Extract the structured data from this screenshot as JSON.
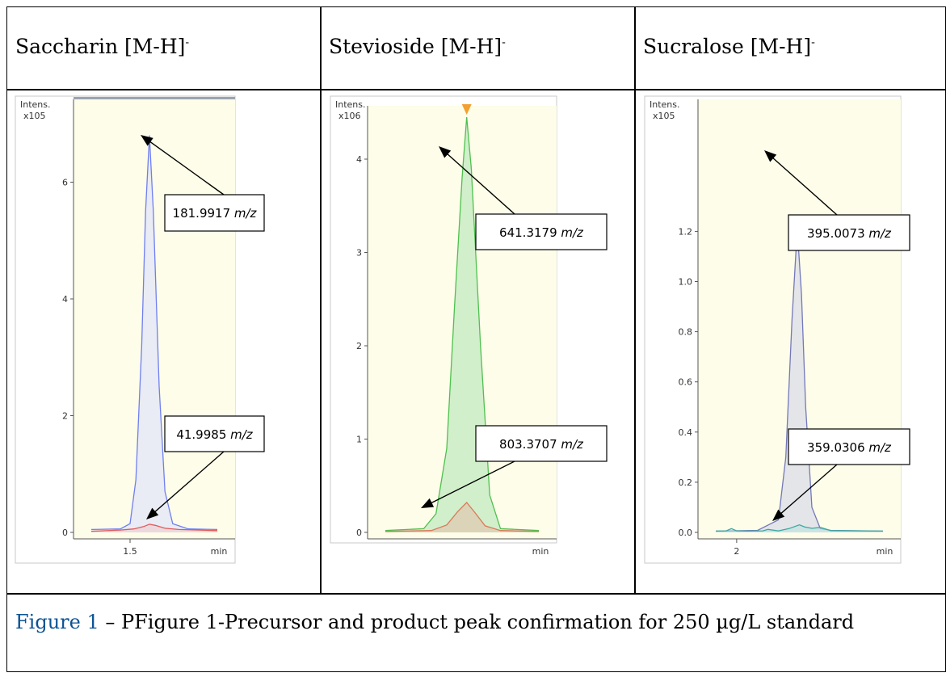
{
  "headers": [
    {
      "name": "Saccharin",
      "ion": "[M-H]",
      "charge": "-"
    },
    {
      "name": "Stevioside",
      "ion": "[M-H]",
      "charge": "-"
    },
    {
      "name": "Sucralose",
      "ion": "[M-H]",
      "charge": "-"
    }
  ],
  "caption": {
    "prefix": "Figure 1",
    "dash": " – ",
    "text": "PFigure 1-Precursor and product peak confirmation for 250 µg/L standard"
  },
  "colors": {
    "saccharin_precursor": "#6f7ff0",
    "saccharin_product": "#e05a5a",
    "stevioside_precursor": "#4fc04f",
    "stevioside_product": "#d87a5a",
    "sucralose_precursor": "#7478b8",
    "sucralose_product": "#3aa8a0",
    "plot_bg": "#fdfde9",
    "marker": "#f2a030"
  },
  "chart_data": [
    {
      "type": "line",
      "ylabel": "Intens.",
      "yscale": "x10^5",
      "ylim": [
        0,
        7
      ],
      "y_ticks": [
        0,
        2,
        4,
        6
      ],
      "x_ticks": [
        {
          "x": 1.5,
          "label": "1.5"
        }
      ],
      "xlabel": "min",
      "xlim": [
        1.3,
        1.95
      ],
      "series": [
        {
          "role": "precursor",
          "x": [
            1.3,
            1.45,
            1.5,
            1.53,
            1.56,
            1.58,
            1.6,
            1.62,
            1.65,
            1.68,
            1.72,
            1.8,
            1.95
          ],
          "values": [
            0.05,
            0.06,
            0.15,
            0.9,
            3.2,
            5.5,
            6.8,
            5.5,
            2.5,
            0.7,
            0.15,
            0.06,
            0.05
          ]
        },
        {
          "role": "product",
          "x": [
            1.3,
            1.45,
            1.52,
            1.57,
            1.6,
            1.63,
            1.68,
            1.75,
            1.95
          ],
          "values": [
            0.02,
            0.04,
            0.06,
            0.1,
            0.14,
            0.12,
            0.07,
            0.05,
            0.03
          ]
        }
      ],
      "annotations": [
        {
          "label": "181.9917",
          "unit": "m/z",
          "series": "precursor"
        },
        {
          "label": "41.9985",
          "unit": "m/z",
          "series": "product"
        }
      ]
    },
    {
      "type": "line",
      "ylabel": "Intens.",
      "yscale": "x10^6",
      "ylim": [
        0,
        4.6
      ],
      "y_ticks": [
        0,
        1,
        2,
        3,
        4
      ],
      "x_ticks": [],
      "xlabel": "min",
      "xlim": [
        0,
        1
      ],
      "series": [
        {
          "role": "precursor",
          "x": [
            0,
            0.25,
            0.33,
            0.4,
            0.45,
            0.5,
            0.53,
            0.56,
            0.62,
            0.68,
            0.75,
            1.0
          ],
          "values": [
            0.02,
            0.04,
            0.2,
            0.9,
            2.4,
            3.8,
            4.45,
            3.9,
            2.0,
            0.4,
            0.04,
            0.02
          ]
        },
        {
          "role": "product",
          "x": [
            0,
            0.3,
            0.4,
            0.47,
            0.53,
            0.58,
            0.65,
            0.75,
            1.0
          ],
          "values": [
            0.01,
            0.02,
            0.08,
            0.22,
            0.32,
            0.22,
            0.07,
            0.02,
            0.01
          ]
        }
      ],
      "annotations": [
        {
          "label": "641.3179",
          "unit": "m/z",
          "series": "precursor"
        },
        {
          "label": "803.3707",
          "unit": "m/z",
          "series": "product"
        }
      ]
    },
    {
      "type": "line",
      "ylabel": "Intens.",
      "yscale": "x10^5",
      "ylim": [
        0,
        1.25
      ],
      "y_ticks": [
        0.0,
        0.2,
        0.4,
        0.6,
        0.8,
        1.0,
        1.2
      ],
      "y_tick_labels": [
        "0.0",
        "0.2",
        "0.4",
        "0.6",
        "0.8",
        "1.0",
        "1.2"
      ],
      "x_ticks": [
        {
          "x": 2,
          "label": "2"
        }
      ],
      "xlabel": "min",
      "xlim": [
        1.8,
        3.4
      ],
      "series": [
        {
          "role": "precursor",
          "x": [
            1.8,
            2.2,
            2.4,
            2.47,
            2.53,
            2.58,
            2.62,
            2.66,
            2.72,
            2.8,
            2.9,
            3.4
          ],
          "values": [
            0.005,
            0.008,
            0.05,
            0.3,
            0.85,
            1.21,
            0.95,
            0.5,
            0.1,
            0.015,
            0.008,
            0.005
          ]
        },
        {
          "role": "product",
          "x": [
            1.8,
            1.9,
            1.95,
            2.0,
            2.1,
            2.25,
            2.3,
            2.4,
            2.5,
            2.6,
            2.65,
            2.72,
            2.8,
            2.9,
            3.4
          ],
          "values": [
            0.005,
            0.006,
            0.015,
            0.006,
            0.005,
            0.006,
            0.012,
            0.006,
            0.015,
            0.03,
            0.022,
            0.016,
            0.02,
            0.007,
            0.005
          ]
        }
      ],
      "annotations": [
        {
          "label": "395.0073",
          "unit": "m/z",
          "series": "precursor"
        },
        {
          "label": "359.0306",
          "unit": "m/z",
          "series": "product"
        }
      ]
    }
  ]
}
